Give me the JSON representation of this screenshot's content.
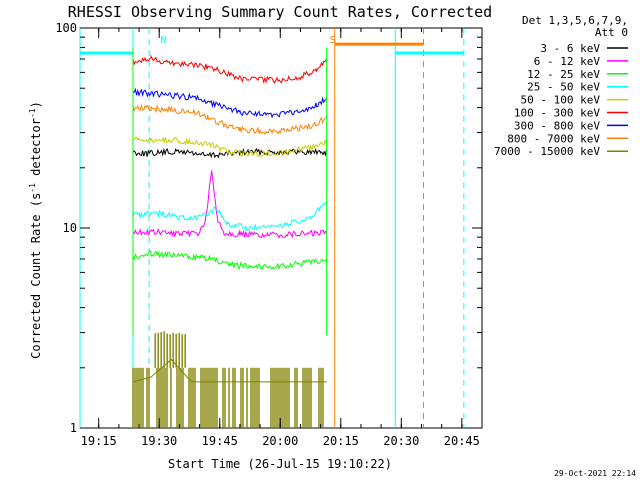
{
  "chart_data": {
    "type": "line",
    "title": "RHESSI Observing Summary Count Rates, Corrected",
    "xlabel": "Start Time (26-Jul-15 19:10:22)",
    "ylabel": "Corrected Count Rate (s",
    "ylabel_sup1": "-1",
    "ylabel_mid": " detector",
    "ylabel_sup2": "-1",
    "ylabel_end": ")",
    "y_scale": "log",
    "ylim": [
      1,
      100
    ],
    "xlim": [
      "19:10:22",
      "20:50:00"
    ],
    "x_ticks": [
      "19:15",
      "19:30",
      "19:45",
      "20:00",
      "20:15",
      "20:30",
      "20:45"
    ],
    "y_ticks": [
      "1",
      "10",
      "100"
    ],
    "grid": false,
    "legend_placement": "right",
    "legend_header": [
      "Det 1,3,5,6,7,9,",
      "Att 0"
    ],
    "timestamp": "29-Oct-2021 22:14",
    "flag_labels": [
      {
        "text": "N",
        "time": "19:31:00",
        "color": "#00ffff"
      },
      {
        "text": "S",
        "time": "20:13:00",
        "color": "#ff8000"
      }
    ],
    "flag_bars": [
      {
        "name": "night",
        "start": "19:10:22",
        "end": "19:23:30",
        "level": 75,
        "color": "#00ffff"
      },
      {
        "name": "saa",
        "start": "20:13:30",
        "end": "20:35:30",
        "level": 83,
        "color": "#ff8000"
      },
      {
        "name": "night",
        "start": "20:28:30",
        "end": "20:45:30",
        "level": 75,
        "color": "#00ffff"
      }
    ],
    "vertical_lines": [
      {
        "time": "19:10:22",
        "color": "#00ffff",
        "dashed": false
      },
      {
        "time": "19:23:30",
        "color": "#00ffff",
        "dashed": false
      },
      {
        "time": "19:27:30",
        "color": "#00ffff",
        "dashed": true
      },
      {
        "time": "20:13:30",
        "color": "#ff8000",
        "dashed": false
      },
      {
        "time": "20:28:30",
        "color": "#00ffff",
        "dashed": false
      },
      {
        "time": "20:35:30",
        "color": "#ff8000",
        "dashed": true
      },
      {
        "time": "20:45:30",
        "color": "#00ffff",
        "dashed": true
      }
    ],
    "series": [
      {
        "name": "3 - 6 keV",
        "color": "#000000",
        "times": [
          "19:23:30",
          "19:27:00",
          "19:32:00",
          "19:37:00",
          "19:42:00",
          "19:47:00",
          "19:52:00",
          "19:57:00",
          "20:02:00",
          "20:07:00",
          "20:10:00",
          "20:11:30"
        ],
        "values": [
          24,
          23.5,
          24,
          24,
          23,
          23.5,
          24,
          24,
          24,
          24,
          24,
          24
        ]
      },
      {
        "name": "6 - 12 keV",
        "color": "#ff00ff",
        "times": [
          "19:23:30",
          "19:30:00",
          "19:36:00",
          "19:40:00",
          "19:41:30",
          "19:43:00",
          "19:44:30",
          "19:46:00",
          "19:50:00",
          "19:57:00",
          "20:03:00",
          "20:08:00",
          "20:11:30"
        ],
        "values": [
          9.5,
          9.5,
          9.3,
          9.5,
          11,
          19,
          11,
          9.5,
          9.3,
          9.2,
          9.3,
          9.4,
          9.5
        ]
      },
      {
        "name": "12 - 25 keV",
        "color": "#00ff00",
        "times": [
          "19:23:30",
          "19:28:00",
          "19:33:00",
          "19:38:00",
          "19:43:00",
          "19:47:00",
          "19:52:00",
          "19:57:00",
          "20:02:00",
          "20:07:00",
          "20:11:30"
        ],
        "values": [
          7.2,
          7.5,
          7.3,
          7.2,
          7.0,
          6.5,
          6.5,
          6.4,
          6.5,
          6.7,
          7.0
        ]
      },
      {
        "name": "25 - 50 keV",
        "color": "#00ffff",
        "times": [
          "19:23:30",
          "19:28:00",
          "19:33:00",
          "19:38:00",
          "19:42:00",
          "19:44:00",
          "19:47:00",
          "19:52:00",
          "19:57:00",
          "20:02:00",
          "20:07:00",
          "20:11:30"
        ],
        "values": [
          11.5,
          12,
          11.5,
          11,
          11.8,
          12.5,
          10.5,
          10,
          10,
          10.5,
          11,
          13.5
        ]
      },
      {
        "name": "50 - 100 keV",
        "color": "#cccc00",
        "times": [
          "19:23:30",
          "19:28:00",
          "19:33:00",
          "19:38:00",
          "19:43:00",
          "19:47:00",
          "19:52:00",
          "19:57:00",
          "20:02:00",
          "20:07:00",
          "20:11:30"
        ],
        "values": [
          27.5,
          27.5,
          27.5,
          27,
          26,
          24,
          23.5,
          23.5,
          24,
          25,
          27
        ]
      },
      {
        "name": "100 - 300 keV",
        "color": "#ff0000",
        "times": [
          "19:23:30",
          "19:28:00",
          "19:33:00",
          "19:38:00",
          "19:42:00",
          "19:46:00",
          "19:50:00",
          "19:55:00",
          "20:00:00",
          "20:05:00",
          "20:09:00",
          "20:11:30"
        ],
        "values": [
          68,
          70,
          67,
          66,
          64,
          60,
          56,
          55,
          55,
          57,
          62,
          70
        ]
      },
      {
        "name": "300 - 800 keV",
        "color": "#0000ff",
        "times": [
          "19:23:30",
          "19:28:00",
          "19:33:00",
          "19:38:00",
          "19:42:00",
          "19:46:00",
          "19:50:00",
          "19:55:00",
          "20:00:00",
          "20:05:00",
          "20:09:00",
          "20:11:30"
        ],
        "values": [
          48,
          47,
          46,
          45,
          43,
          40,
          38,
          37,
          37,
          38,
          41,
          45
        ]
      },
      {
        "name": "800 - 7000 keV",
        "color": "#ff8000",
        "times": [
          "19:23:30",
          "19:28:00",
          "19:33:00",
          "19:38:00",
          "19:42:00",
          "19:46:00",
          "19:50:00",
          "19:55:00",
          "20:00:00",
          "20:05:00",
          "20:09:00",
          "20:11:30"
        ],
        "values": [
          40,
          39.5,
          39,
          38,
          36,
          33,
          31,
          30.5,
          30.5,
          31.5,
          33,
          36
        ]
      },
      {
        "name": "7000 - 15000 keV",
        "color": "#808000",
        "times": [
          "19:23:30",
          "19:28:00",
          "19:33:00",
          "19:38:00",
          "19:43:00",
          "19:48:00",
          "19:53:00",
          "19:58:00",
          "20:03:00",
          "20:08:00",
          "20:11:30"
        ],
        "values": [
          1.7,
          1.8,
          2.2,
          1.7,
          1.7,
          1.7,
          1.7,
          1.7,
          1.7,
          1.7,
          1.7
        ]
      }
    ]
  }
}
